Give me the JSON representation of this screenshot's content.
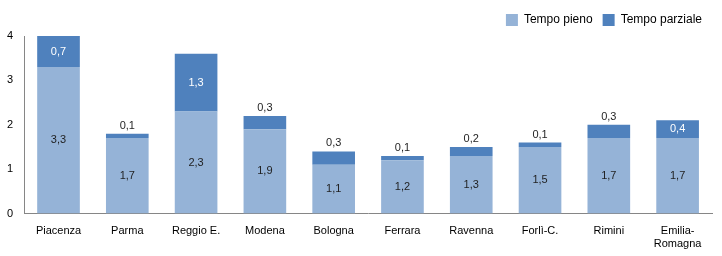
{
  "chart_data": {
    "type": "bar",
    "stacked": true,
    "categories": [
      "Piacenza",
      "Parma",
      "Reggio E.",
      "Modena",
      "Bologna",
      "Ferrara",
      "Ravenna",
      "Forlì-C.",
      "Rimini",
      "Emilia-Romagna"
    ],
    "series": [
      {
        "name": "Tempo pieno",
        "color": "#95b3d7",
        "values": [
          3.3,
          1.7,
          2.3,
          1.9,
          1.1,
          1.2,
          1.3,
          1.5,
          1.7,
          1.7
        ],
        "value_labels": [
          "3,3",
          "1,7",
          "2,3",
          "1,9",
          "1,1",
          "1,2",
          "1,3",
          "1,5",
          "1,7",
          "1,7"
        ]
      },
      {
        "name": "Tempo parziale",
        "color": "#4f81bd",
        "values": [
          0.7,
          0.1,
          1.3,
          0.3,
          0.3,
          0.1,
          0.2,
          0.1,
          0.3,
          0.4
        ],
        "value_labels": [
          "0,7",
          "0,1",
          "1,3",
          "0,3",
          "0,3",
          "0,1",
          "0,2",
          "0,1",
          "0,3",
          "0,4"
        ]
      }
    ],
    "ylim": [
      0,
      4
    ],
    "yticks": [
      0,
      1,
      2,
      3,
      4
    ],
    "grid": false,
    "legend": "top-right",
    "data_labels": true
  }
}
